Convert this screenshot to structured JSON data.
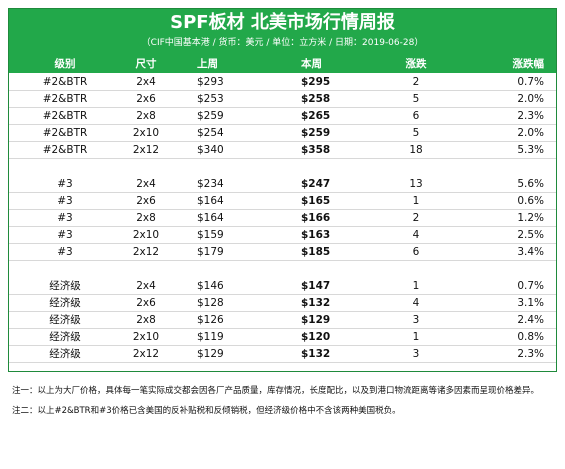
{
  "title": "SPF板材 北美市场行情周报",
  "subtitle": "（CIF中国基本港 / 货币：美元 / 单位：立方米 / 日期：2019-06-28）",
  "headers": {
    "grade": "级别",
    "size": "尺寸",
    "last_week": "上周",
    "this_week": "本周",
    "change": "涨跌",
    "pct": "涨跌幅"
  },
  "rows": [
    {
      "grade": "#2&BTR",
      "size": "2x4",
      "last": "$293",
      "this": "$295",
      "chg": "2",
      "pct": "0.7%"
    },
    {
      "grade": "#2&BTR",
      "size": "2x6",
      "last": "$253",
      "this": "$258",
      "chg": "5",
      "pct": "2.0%"
    },
    {
      "grade": "#2&BTR",
      "size": "2x8",
      "last": "$259",
      "this": "$265",
      "chg": "6",
      "pct": "2.3%"
    },
    {
      "grade": "#2&BTR",
      "size": "2x10",
      "last": "$254",
      "this": "$259",
      "chg": "5",
      "pct": "2.0%"
    },
    {
      "grade": "#2&BTR",
      "size": "2x12",
      "last": "$340",
      "this": "$358",
      "chg": "18",
      "pct": "5.3%"
    },
    {
      "grade": "#3",
      "size": "2x4",
      "last": "$234",
      "this": "$247",
      "chg": "13",
      "pct": "5.6%"
    },
    {
      "grade": "#3",
      "size": "2x6",
      "last": "$164",
      "this": "$165",
      "chg": "1",
      "pct": "0.6%"
    },
    {
      "grade": "#3",
      "size": "2x8",
      "last": "$164",
      "this": "$166",
      "chg": "2",
      "pct": "1.2%"
    },
    {
      "grade": "#3",
      "size": "2x10",
      "last": "$159",
      "this": "$163",
      "chg": "4",
      "pct": "2.5%"
    },
    {
      "grade": "#3",
      "size": "2x12",
      "last": "$179",
      "this": "$185",
      "chg": "6",
      "pct": "3.4%"
    },
    {
      "grade": "经济级",
      "size": "2x4",
      "last": "$146",
      "this": "$147",
      "chg": "1",
      "pct": "0.7%"
    },
    {
      "grade": "经济级",
      "size": "2x6",
      "last": "$128",
      "this": "$132",
      "chg": "4",
      "pct": "3.1%"
    },
    {
      "grade": "经济级",
      "size": "2x8",
      "last": "$126",
      "this": "$129",
      "chg": "3",
      "pct": "2.4%"
    },
    {
      "grade": "经济级",
      "size": "2x10",
      "last": "$119",
      "this": "$120",
      "chg": "1",
      "pct": "0.8%"
    },
    {
      "grade": "经济级",
      "size": "2x12",
      "last": "$129",
      "this": "$132",
      "chg": "3",
      "pct": "2.3%"
    }
  ],
  "notes": [
    "注一：以上为大厂价格，具体每一笔实际成交都会因各厂产品质量，库存情况，长度配比，以及到港口物流距离等诸多因素而呈现价格差异。",
    "注二：以上#2&BTR和#3价格已含美国的反补贴税和反倾销税，但经济级价格中不含该两种美国税负。"
  ]
}
